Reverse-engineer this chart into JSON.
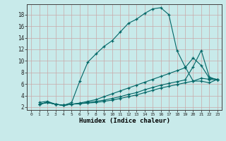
{
  "xlabel": "Humidex (Indice chaleur)",
  "bg_color": "#c8eaea",
  "grid_color": "#c8a8a8",
  "line_color": "#006666",
  "xlim_min": -0.5,
  "xlim_max": 23.5,
  "ylim_min": 1.5,
  "ylim_max": 19.8,
  "xticks": [
    0,
    1,
    2,
    3,
    4,
    5,
    6,
    7,
    8,
    9,
    10,
    11,
    12,
    13,
    14,
    15,
    16,
    17,
    18,
    19,
    20,
    21,
    22,
    23
  ],
  "yticks": [
    2,
    4,
    6,
    8,
    10,
    12,
    14,
    16,
    18
  ],
  "line1_x": [
    1,
    2,
    3,
    4,
    5,
    6,
    7,
    8,
    9,
    10,
    11,
    12,
    13,
    14,
    15,
    16,
    17,
    18,
    19,
    20,
    21,
    22,
    23
  ],
  "line1_y": [
    2.8,
    3.0,
    2.5,
    2.3,
    2.8,
    6.5,
    9.8,
    11.2,
    12.5,
    13.5,
    15.0,
    16.5,
    17.2,
    18.2,
    19.0,
    19.2,
    18.0,
    11.8,
    9.0,
    6.5,
    6.5,
    6.2,
    6.8
  ],
  "line2_x": [
    1,
    2,
    3,
    4,
    5,
    6,
    7,
    8,
    9,
    10,
    11,
    12,
    13,
    14,
    15,
    16,
    17,
    18,
    19,
    20,
    21,
    22,
    23
  ],
  "line2_y": [
    2.5,
    2.8,
    2.5,
    2.3,
    2.5,
    2.7,
    3.0,
    3.3,
    3.8,
    4.3,
    4.8,
    5.3,
    5.8,
    6.3,
    6.8,
    7.3,
    7.8,
    8.3,
    8.8,
    10.5,
    9.2,
    7.0,
    6.8
  ],
  "line3_x": [
    1,
    2,
    3,
    4,
    5,
    6,
    7,
    8,
    9,
    10,
    11,
    12,
    13,
    14,
    15,
    16,
    17,
    18,
    19,
    20,
    21,
    22,
    23
  ],
  "line3_y": [
    2.5,
    2.8,
    2.5,
    2.3,
    2.5,
    2.6,
    2.8,
    3.0,
    3.2,
    3.5,
    3.8,
    4.2,
    4.5,
    5.0,
    5.4,
    5.8,
    6.1,
    6.4,
    6.7,
    9.0,
    11.8,
    7.2,
    6.7
  ],
  "line4_x": [
    1,
    2,
    3,
    4,
    5,
    6,
    7,
    8,
    9,
    10,
    11,
    12,
    13,
    14,
    15,
    16,
    17,
    18,
    19,
    20,
    21,
    22,
    23
  ],
  "line4_y": [
    2.5,
    2.8,
    2.5,
    2.3,
    2.5,
    2.6,
    2.7,
    2.8,
    3.0,
    3.2,
    3.5,
    3.8,
    4.1,
    4.5,
    4.9,
    5.3,
    5.6,
    5.9,
    6.2,
    6.5,
    7.0,
    6.8,
    6.7
  ]
}
